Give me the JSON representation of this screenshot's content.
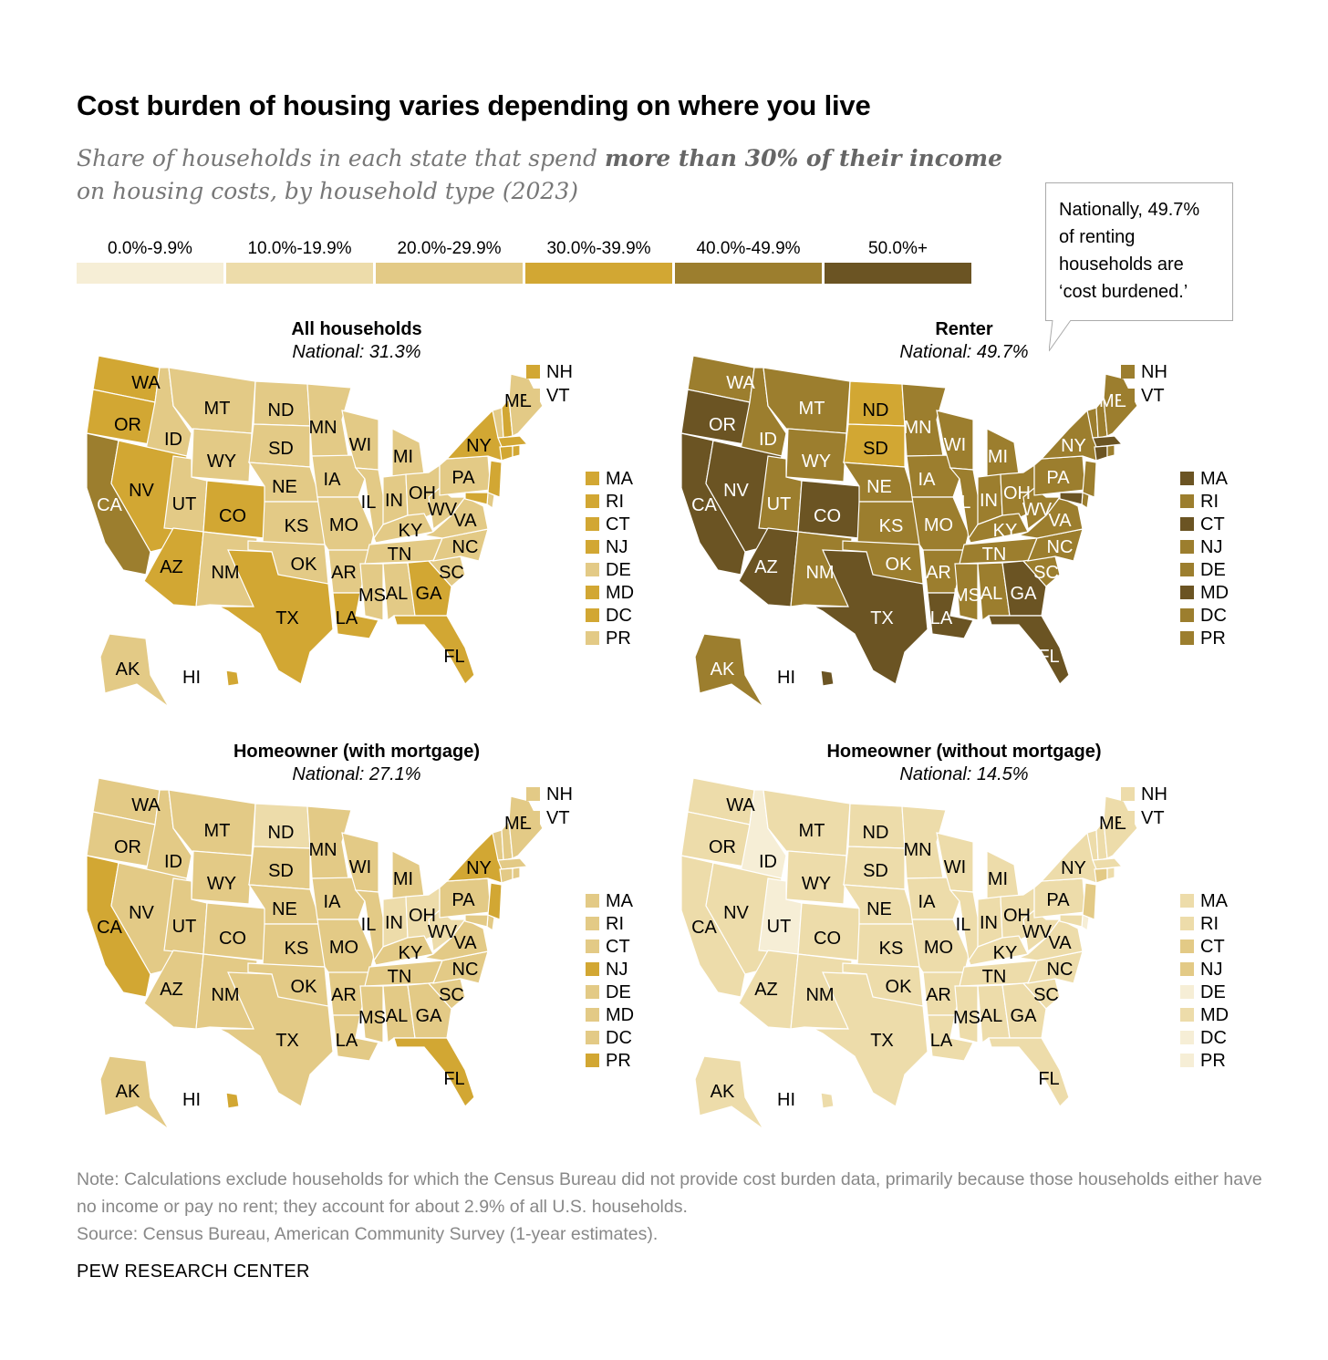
{
  "title": "Cost burden of housing varies depending on where you live",
  "subtitle": {
    "part1": "Share of households in each state that spend ",
    "bold": "more than 30% of their income",
    "part2": " on housing costs, by household type (2023)"
  },
  "legend": [
    {
      "label": "0.0%-9.9%",
      "color": "#f6eed6"
    },
    {
      "label": "10.0%-19.9%",
      "color": "#eddcaa"
    },
    {
      "label": "20.0%-29.9%",
      "color": "#e3ca86"
    },
    {
      "label": "30.0%-39.9%",
      "color": "#d2a733"
    },
    {
      "label": "40.0%-49.9%",
      "color": "#9c7e2e"
    },
    {
      "label": "50.0%+",
      "color": "#6b5423"
    }
  ],
  "callout": "Nationally, 49.7% of renting households are ‘cost burdened.’",
  "small_states": [
    "NH",
    "VT",
    "MA",
    "RI",
    "CT",
    "NJ",
    "DE",
    "MD",
    "DC",
    "PR"
  ],
  "maps": [
    {
      "title": "All households",
      "national": "National: 31.3%",
      "bins": {
        "WA": 3,
        "OR": 3,
        "CA": 4,
        "ID": 2,
        "NV": 3,
        "MT": 2,
        "WY": 2,
        "UT": 2,
        "CO": 3,
        "AZ": 3,
        "NM": 2,
        "ND": 2,
        "SD": 2,
        "NE": 2,
        "KS": 2,
        "OK": 2,
        "TX": 3,
        "MN": 2,
        "IA": 2,
        "MO": 2,
        "AR": 2,
        "LA": 3,
        "WI": 2,
        "IL": 2,
        "MI": 2,
        "IN": 2,
        "OH": 2,
        "KY": 2,
        "TN": 2,
        "MS": 2,
        "AL": 2,
        "GA": 3,
        "SC": 2,
        "NC": 2,
        "VA": 2,
        "WV": 2,
        "PA": 2,
        "NY": 3,
        "ME": 2,
        "FL": 3,
        "AK": 2,
        "HI": 3,
        "NH": 3,
        "VT": 2,
        "MA": 3,
        "RI": 3,
        "CT": 3,
        "NJ": 3,
        "DE": 2,
        "MD": 3,
        "DC": 3,
        "PR": 2
      }
    },
    {
      "title": "Renter",
      "national": "National: 49.7%",
      "bins": {
        "WA": 4,
        "OR": 5,
        "CA": 5,
        "ID": 4,
        "NV": 5,
        "MT": 4,
        "WY": 4,
        "UT": 4,
        "CO": 5,
        "AZ": 5,
        "NM": 4,
        "ND": 3,
        "SD": 3,
        "NE": 4,
        "KS": 4,
        "OK": 4,
        "TX": 5,
        "MN": 4,
        "IA": 4,
        "MO": 4,
        "AR": 4,
        "LA": 5,
        "WI": 4,
        "IL": 4,
        "MI": 4,
        "IN": 4,
        "OH": 4,
        "KY": 4,
        "TN": 4,
        "MS": 4,
        "AL": 4,
        "GA": 5,
        "SC": 4,
        "NC": 4,
        "VA": 4,
        "WV": 4,
        "PA": 4,
        "NY": 4,
        "ME": 4,
        "FL": 5,
        "AK": 4,
        "HI": 5,
        "NH": 4,
        "VT": 4,
        "MA": 5,
        "RI": 4,
        "CT": 5,
        "NJ": 4,
        "DE": 4,
        "MD": 5,
        "DC": 4,
        "PR": 4
      }
    },
    {
      "title": "Homeowner (with mortgage)",
      "national": "National: 27.1%",
      "bins": {
        "WA": 2,
        "OR": 2,
        "CA": 3,
        "ID": 2,
        "NV": 2,
        "MT": 2,
        "WY": 2,
        "UT": 2,
        "CO": 2,
        "AZ": 2,
        "NM": 2,
        "ND": 1,
        "SD": 2,
        "NE": 2,
        "KS": 2,
        "OK": 2,
        "TX": 2,
        "MN": 2,
        "IA": 2,
        "MO": 2,
        "AR": 2,
        "LA": 2,
        "WI": 2,
        "IL": 2,
        "MI": 2,
        "IN": 1,
        "OH": 1,
        "KY": 2,
        "TN": 2,
        "MS": 2,
        "AL": 2,
        "GA": 2,
        "SC": 2,
        "NC": 2,
        "VA": 2,
        "WV": 1,
        "PA": 2,
        "NY": 3,
        "ME": 2,
        "FL": 3,
        "AK": 2,
        "HI": 3,
        "NH": 2,
        "VT": 2,
        "MA": 2,
        "RI": 2,
        "CT": 2,
        "NJ": 3,
        "DE": 2,
        "MD": 2,
        "DC": 2,
        "PR": 3
      }
    },
    {
      "title": "Homeowner (without mortgage)",
      "national": "National: 14.5%",
      "bins": {
        "WA": 1,
        "OR": 1,
        "CA": 1,
        "ID": 0,
        "NV": 1,
        "MT": 1,
        "WY": 1,
        "UT": 0,
        "CO": 1,
        "AZ": 1,
        "NM": 1,
        "ND": 1,
        "SD": 1,
        "NE": 1,
        "KS": 1,
        "OK": 1,
        "TX": 1,
        "MN": 1,
        "IA": 1,
        "MO": 1,
        "AR": 1,
        "LA": 1,
        "WI": 1,
        "IL": 1,
        "MI": 1,
        "IN": 1,
        "OH": 1,
        "KY": 1,
        "TN": 1,
        "MS": 1,
        "AL": 1,
        "GA": 1,
        "SC": 1,
        "NC": 1,
        "VA": 1,
        "WV": 1,
        "PA": 1,
        "NY": 1,
        "ME": 1,
        "FL": 1,
        "AK": 1,
        "HI": 1,
        "NH": 1,
        "VT": 1,
        "MA": 1,
        "RI": 1,
        "CT": 2,
        "NJ": 2,
        "DE": 0,
        "MD": 1,
        "DC": 0,
        "PR": 0
      }
    }
  ],
  "note": "Note: Calculations exclude households for which the Census Bureau did not provide cost burden data, primarily because those households either have no income or pay no rent; they account for about 2.9% of all U.S. households.",
  "source": "Source: Census Bureau, American Community Survey (1-year estimates).",
  "brand": "PEW RESEARCH CENTER"
}
